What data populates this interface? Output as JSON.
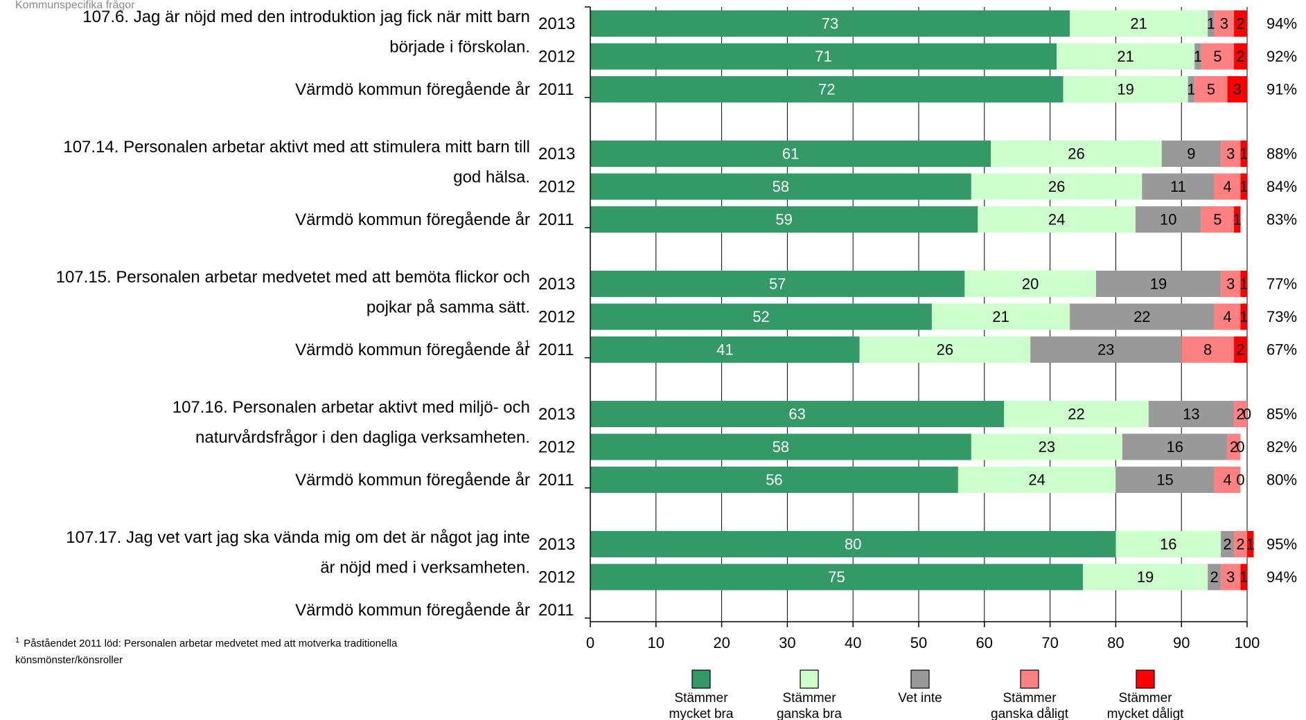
{
  "page_header": "Kommunspecifika frågor",
  "footnote": {
    "marker": "1",
    "line1": "Påståendet 2011 löd: Personalen arbetar medvetet med att motverka traditionella",
    "line2": "könsmönster/könsroller"
  },
  "colors": {
    "mycket_bra": "#339966",
    "ganska_bra": "#ccffcc",
    "vet_inte": "#999999",
    "ganska_daligt": "#ff8080",
    "mycket_daligt": "#ff0000",
    "axis": "#000000",
    "gridline": "#000000"
  },
  "chart_data": {
    "type": "bar",
    "orientation": "horizontal",
    "stacked": true,
    "xlim": [
      0,
      100
    ],
    "x_ticks": [
      "0",
      "10",
      "20",
      "30",
      "40",
      "50",
      "60",
      "70",
      "80",
      "90",
      "100"
    ],
    "grid": "vertical",
    "legend_position": "bottom",
    "legend": [
      {
        "key": "mycket_bra",
        "line1": "Stämmer",
        "line2": "mycket bra"
      },
      {
        "key": "ganska_bra",
        "line1": "Stämmer",
        "line2": "ganska bra"
      },
      {
        "key": "vet_inte",
        "line1": "Vet inte",
        "line2": ""
      },
      {
        "key": "ganska_daligt",
        "line1": "Stämmer",
        "line2": "ganska dåligt"
      },
      {
        "key": "mycket_daligt",
        "line1": "Stämmer",
        "line2": "mycket dåligt"
      }
    ],
    "groups": [
      {
        "label_lines": [
          "107.6.  Jag är nöjd med den introduktion jag fick när mitt barn",
          "började i förskolan.",
          "Värmdö kommun föregående år"
        ],
        "rows": [
          {
            "year": "2013",
            "values": [
              73,
              21,
              1,
              3,
              2
            ],
            "total": "94%"
          },
          {
            "year": "2012",
            "values": [
              71,
              21,
              1,
              5,
              2
            ],
            "total": "92%"
          },
          {
            "year": "2011",
            "values": [
              72,
              19,
              1,
              5,
              3
            ],
            "total": "91%"
          }
        ]
      },
      {
        "label_lines": [
          "107.14.  Personalen arbetar aktivt med att stimulera mitt barn till",
          "god hälsa.",
          "Värmdö kommun föregående år"
        ],
        "rows": [
          {
            "year": "2013",
            "values": [
              61,
              26,
              9,
              3,
              1
            ],
            "total": "88%"
          },
          {
            "year": "2012",
            "values": [
              58,
              26,
              11,
              4,
              1
            ],
            "total": "84%"
          },
          {
            "year": "2011",
            "values": [
              59,
              24,
              10,
              5,
              1
            ],
            "total": "83%"
          }
        ]
      },
      {
        "label_lines": [
          "107.15.  Personalen arbetar medvetet med att bemöta flickor och",
          "pojkar på samma sätt.",
          "Värmdö kommun föregående år"
        ],
        "footnote_marker": "1",
        "rows": [
          {
            "year": "2013",
            "values": [
              57,
              20,
              19,
              3,
              1
            ],
            "total": "77%"
          },
          {
            "year": "2012",
            "values": [
              52,
              21,
              22,
              4,
              1
            ],
            "total": "73%"
          },
          {
            "year": "2011",
            "values": [
              41,
              26,
              23,
              8,
              2
            ],
            "total": "67%"
          }
        ]
      },
      {
        "label_lines": [
          "107.16.  Personalen arbetar aktivt med miljö- och",
          "naturvårdsfrågor i den dagliga verksamheten.",
          "Värmdö kommun föregående år"
        ],
        "rows": [
          {
            "year": "2013",
            "values": [
              63,
              22,
              13,
              2,
              0
            ],
            "total": "85%"
          },
          {
            "year": "2012",
            "values": [
              58,
              23,
              16,
              2,
              0
            ],
            "total": "82%"
          },
          {
            "year": "2011",
            "values": [
              56,
              24,
              15,
              4,
              0
            ],
            "total": "80%"
          }
        ]
      },
      {
        "label_lines": [
          "107.17.  Jag vet vart jag ska vända mig om det är något jag inte",
          "är nöjd med i verksamheten.",
          "Värmdö kommun föregående år"
        ],
        "rows": [
          {
            "year": "2013",
            "values": [
              80,
              16,
              2,
              2,
              1
            ],
            "total": "95%"
          },
          {
            "year": "2012",
            "values": [
              75,
              19,
              2,
              3,
              1
            ],
            "total": "94%"
          },
          {
            "year": "2011",
            "values": [],
            "total": ""
          }
        ]
      }
    ]
  }
}
